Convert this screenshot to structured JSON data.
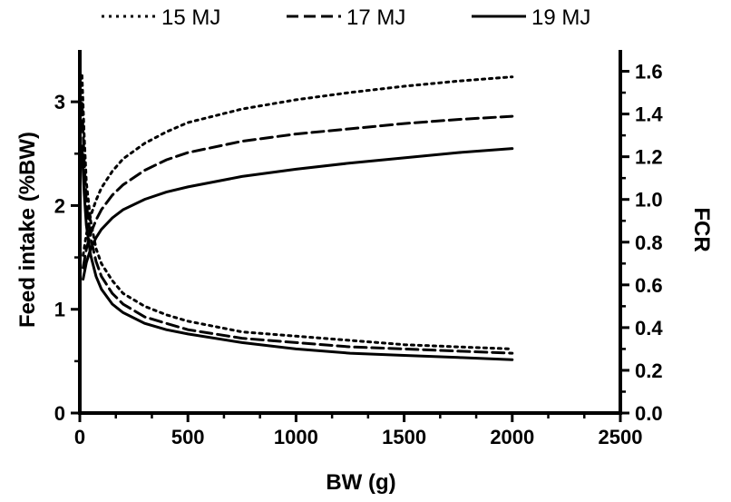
{
  "chart_data": {
    "type": "line",
    "xlabel": "BW (g)",
    "ylabel": "Feed intake (%BW)",
    "y2label": "FCR",
    "xlim": [
      0,
      2500
    ],
    "ylim": [
      0,
      3.5
    ],
    "y2lim": [
      0,
      1.7
    ],
    "xticks": [
      0,
      500,
      1000,
      1500,
      2000,
      2500
    ],
    "yticks": [
      0,
      1,
      2,
      3
    ],
    "y2ticks": [
      0.0,
      0.2,
      0.4,
      0.6,
      0.8,
      1.0,
      1.2,
      1.4,
      1.6
    ],
    "legend_position": "top",
    "grid": false,
    "series": [
      {
        "name": "15 MJ",
        "style": "dotted",
        "feed_intake": {
          "x": [
            15,
            30,
            50,
            75,
            100,
            150,
            200,
            300,
            400,
            500,
            750,
            1000,
            1250,
            1500,
            1750,
            2000
          ],
          "y": [
            1.52,
            1.72,
            1.9,
            2.05,
            2.17,
            2.33,
            2.45,
            2.6,
            2.71,
            2.8,
            2.93,
            3.02,
            3.09,
            3.15,
            3.2,
            3.24
          ]
        },
        "fcr": {
          "x": [
            10,
            20,
            30,
            50,
            75,
            100,
            150,
            200,
            300,
            400,
            500,
            750,
            1000,
            1250,
            1500,
            1750,
            2000
          ],
          "y": [
            1.58,
            1.3,
            1.08,
            0.9,
            0.77,
            0.7,
            0.62,
            0.56,
            0.5,
            0.46,
            0.43,
            0.38,
            0.36,
            0.34,
            0.32,
            0.31,
            0.3
          ]
        }
      },
      {
        "name": "17 MJ",
        "style": "dashed",
        "feed_intake": {
          "x": [
            15,
            30,
            50,
            75,
            100,
            150,
            200,
            300,
            400,
            500,
            750,
            1000,
            1250,
            1500,
            1750,
            2000
          ],
          "y": [
            1.4,
            1.58,
            1.73,
            1.86,
            1.96,
            2.1,
            2.2,
            2.34,
            2.44,
            2.51,
            2.62,
            2.69,
            2.74,
            2.79,
            2.83,
            2.86
          ]
        },
        "fcr": {
          "x": [
            10,
            20,
            30,
            50,
            75,
            100,
            150,
            200,
            300,
            400,
            500,
            750,
            1000,
            1250,
            1500,
            1750,
            2000
          ],
          "y": [
            1.45,
            1.18,
            0.98,
            0.82,
            0.71,
            0.64,
            0.56,
            0.51,
            0.45,
            0.42,
            0.39,
            0.35,
            0.33,
            0.31,
            0.3,
            0.29,
            0.28
          ]
        }
      },
      {
        "name": "19 MJ",
        "style": "solid",
        "feed_intake": {
          "x": [
            15,
            30,
            50,
            75,
            100,
            150,
            200,
            300,
            400,
            500,
            750,
            1000,
            1250,
            1500,
            1750,
            2000
          ],
          "y": [
            1.29,
            1.45,
            1.58,
            1.69,
            1.77,
            1.88,
            1.96,
            2.06,
            2.13,
            2.18,
            2.28,
            2.35,
            2.41,
            2.46,
            2.51,
            2.55
          ]
        },
        "fcr": {
          "x": [
            10,
            20,
            30,
            50,
            75,
            100,
            150,
            200,
            300,
            400,
            500,
            750,
            1000,
            1250,
            1500,
            1750,
            2000
          ],
          "y": [
            1.25,
            1.03,
            0.88,
            0.74,
            0.64,
            0.58,
            0.51,
            0.47,
            0.42,
            0.39,
            0.37,
            0.33,
            0.3,
            0.28,
            0.27,
            0.26,
            0.25
          ]
        }
      }
    ]
  }
}
